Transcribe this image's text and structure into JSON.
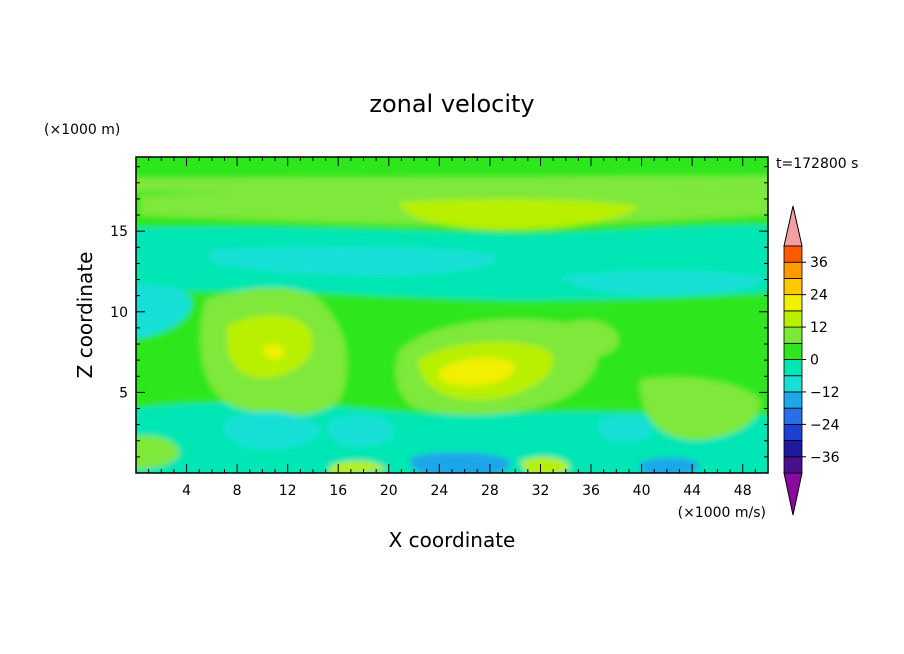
{
  "chart_data": {
    "type": "heatmap",
    "title": "zonal velocity",
    "xlabel": "X coordinate",
    "ylabel": "Z coordinate",
    "x_unit": "(×1000 m/s)",
    "y_unit": "(×1000 m)",
    "time_label": "t=172800 s",
    "xlim": [
      0,
      50
    ],
    "ylim": [
      0,
      19.6
    ],
    "x_ticks": [
      4,
      8,
      12,
      16,
      20,
      24,
      28,
      32,
      36,
      40,
      44,
      48
    ],
    "y_ticks": [
      5,
      10,
      15
    ],
    "colorbar": {
      "labels": [
        36,
        24,
        12,
        0,
        -12,
        -24,
        -36
      ],
      "levels": [
        -42,
        -36,
        -30,
        -24,
        -18,
        -12,
        -6,
        0,
        6,
        12,
        18,
        24,
        30,
        36,
        42
      ],
      "colors": [
        "#7a0080",
        "#4a0f8c",
        "#1e1a9e",
        "#1d3fd6",
        "#2b6fe8",
        "#1fa6ea",
        "#18e0d6",
        "#00e6b4",
        "#2ee61e",
        "#7ee83a",
        "#b8f000",
        "#f0f000",
        "#ffc800",
        "#ff9a00",
        "#ff5a00",
        "#ff2010",
        "#f5a0a0"
      ],
      "under_color": "#8a0a9e",
      "over_color": "#f5a0a0"
    },
    "features": [
      {
        "name": "upper positive jet",
        "x_range": [
          24,
          38
        ],
        "z_range": [
          15.5,
          17.5
        ],
        "max": 12
      },
      {
        "name": "mid-level positive cell",
        "x_range": [
          22,
          32
        ],
        "z_range": [
          5,
          8
        ],
        "max": 18
      },
      {
        "name": "left positive cell",
        "x_range": [
          8,
          15
        ],
        "z_range": [
          6,
          10
        ],
        "max": 15
      },
      {
        "name": "near-surface negative cell",
        "x_range": [
          24,
          28
        ],
        "z_range": [
          0,
          1
        ],
        "min": -18
      },
      {
        "name": "mid-level negative band",
        "x_range": [
          0,
          50
        ],
        "z_range": [
          10,
          15
        ],
        "min": -6
      }
    ],
    "grid": false
  }
}
